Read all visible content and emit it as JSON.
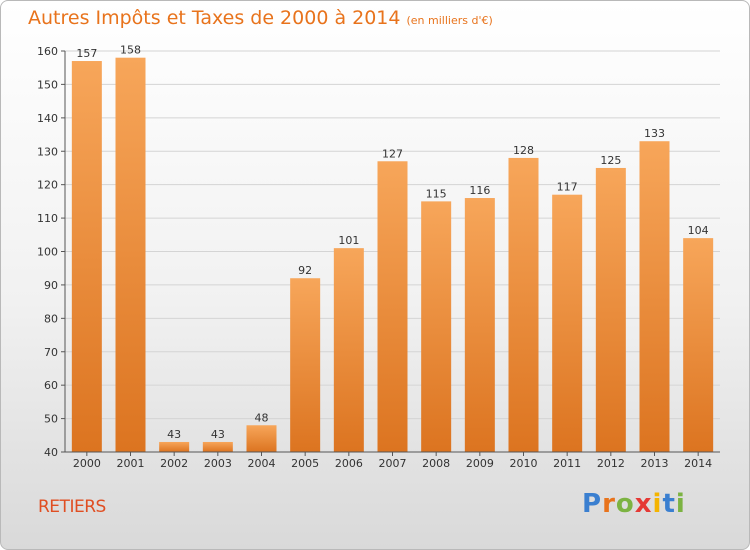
{
  "header": {
    "title": "Autres Impôts et Taxes de 2000 à 2014",
    "subtitle": "(en milliers d'€)"
  },
  "footer": {
    "commune": "RETIERS",
    "logo_text": "Proxiti"
  },
  "colors": {
    "accent": "#e8731c",
    "bar_top": "#f7a65a",
    "bar_bottom": "#dc7420",
    "commune_text": "#e04e22"
  },
  "chart_data": {
    "type": "bar",
    "title": "Autres Impôts et Taxes de 2000 à 2014",
    "subtitle": "(en milliers d'€)",
    "xlabel": "",
    "ylabel": "",
    "categories": [
      "2000",
      "2001",
      "2002",
      "2003",
      "2004",
      "2005",
      "2006",
      "2007",
      "2008",
      "2009",
      "2010",
      "2011",
      "2012",
      "2013",
      "2014"
    ],
    "values": [
      157,
      158,
      43,
      43,
      48,
      92,
      101,
      127,
      115,
      116,
      128,
      117,
      125,
      133,
      104
    ],
    "ylim": [
      40,
      160
    ],
    "yticks": [
      40,
      50,
      60,
      70,
      80,
      90,
      100,
      110,
      120,
      130,
      140,
      150,
      160
    ],
    "grid": true,
    "legend": "none"
  }
}
